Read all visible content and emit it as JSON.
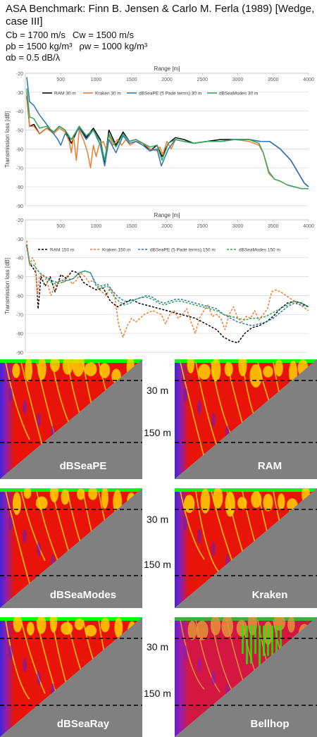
{
  "header": {
    "title": "ASA Benchmark: Finn B. Jensen & Carlo M. Ferla (1989) [Wedge, case III]",
    "params_line1_left": "Cb = 1700 m/s",
    "params_line1_right": "Cw = 1500 m/s",
    "params_line2_left": "ρb = 1500 kg/m³",
    "params_line2_right": "ρw = 1000 kg/m³",
    "params_line3": "αb = 0.5 dB/λ"
  },
  "colors": {
    "RAM": "#000000",
    "Kraken": "#ED7D31",
    "dBSeaPE": "#2E75B6",
    "dBSeaModes": "#2EA85A",
    "seabed": "#808080",
    "water_hot": "#e8140a",
    "water_mid": "#ffd100",
    "surface": "#00ff00",
    "deep": "#6a1cc8"
  },
  "chart_data": [
    {
      "type": "line",
      "receiver_depth_m": 30,
      "xlabel": "Range [m]",
      "ylabel": "Transmission loss [dB]",
      "xlim": [
        0,
        4000
      ],
      "ylim": [
        -90,
        -20
      ],
      "x_ticks": [
        "500",
        "1000",
        "1500",
        "2000",
        "2500",
        "3000",
        "3500",
        "4000"
      ],
      "y_ticks": [
        "-20",
        "-30",
        "-40",
        "-50",
        "-60",
        "-70",
        "-80",
        "-90"
      ],
      "grid": true,
      "legend_position": "top",
      "series": [
        {
          "name": "RAM 30 m",
          "key": "RAM",
          "dashed": false,
          "x": [
            20,
            60,
            120,
            200,
            300,
            400,
            480,
            560,
            650,
            760,
            860,
            960,
            1060,
            1120,
            1180,
            1280,
            1380,
            1470,
            1560,
            1660,
            1760,
            1860,
            1930,
            2020,
            2120,
            2240,
            2380,
            2560,
            2760,
            2960,
            3160,
            3320,
            3450,
            3600,
            3750,
            3860,
            3940,
            4000
          ],
          "y": [
            -32,
            -48,
            -47,
            -52,
            -49,
            -51,
            -48,
            -50,
            -57,
            -48,
            -54,
            -49,
            -55,
            -67,
            -50,
            -58,
            -51,
            -56,
            -55,
            -57,
            -61,
            -58,
            -64,
            -57,
            -54,
            -55,
            -57,
            -56,
            -55,
            -55,
            -55,
            -56,
            -56,
            -60,
            -66,
            -73,
            -78,
            -80
          ]
        },
        {
          "name": "Kraken 30 m",
          "key": "Kraken",
          "dashed": false,
          "x": [
            20,
            60,
            120,
            200,
            300,
            400,
            480,
            560,
            620,
            650,
            680,
            720,
            760,
            830,
            880,
            920,
            960,
            1000,
            1040,
            1100,
            1140,
            1180,
            1240,
            1300,
            1360,
            1420,
            1480,
            1560,
            1660,
            1760,
            1860,
            1900,
            1940,
            2000,
            2060,
            2120,
            2240,
            2380,
            2560,
            2760,
            2960,
            3160,
            3300,
            3360,
            3440,
            3520,
            3600,
            3700,
            3800,
            3900,
            4000
          ],
          "y": [
            -30,
            -48,
            -48,
            -52,
            -49,
            -52,
            -49,
            -51,
            -56,
            -62,
            -53,
            -66,
            -50,
            -56,
            -62,
            -70,
            -58,
            -64,
            -58,
            -56,
            -60,
            -53,
            -58,
            -55,
            -58,
            -55,
            -58,
            -56,
            -57,
            -60,
            -61,
            -59,
            -63,
            -56,
            -60,
            -55,
            -56,
            -57,
            -56,
            -56,
            -55,
            -56,
            -58,
            -62,
            -73,
            -76,
            -77,
            -79,
            -80,
            -81,
            -81
          ]
        },
        {
          "name": "dBSeaPE (5 Padé terms) 30 m",
          "key": "dBSeaPE",
          "dashed": false,
          "x": [
            20,
            60,
            120,
            200,
            300,
            400,
            460,
            500,
            560,
            650,
            760,
            860,
            960,
            1060,
            1120,
            1180,
            1280,
            1380,
            1470,
            1560,
            1660,
            1760,
            1860,
            1920,
            2020,
            2120,
            2240,
            2380,
            2560,
            2760,
            2960,
            3160,
            3320,
            3450,
            3600,
            3750,
            3860,
            3940,
            4000
          ],
          "y": [
            -22,
            -35,
            -37,
            -42,
            -47,
            -52,
            -55,
            -58,
            -52,
            -55,
            -49,
            -55,
            -50,
            -58,
            -69,
            -55,
            -62,
            -53,
            -57,
            -56,
            -58,
            -61,
            -60,
            -69,
            -60,
            -55,
            -56,
            -57,
            -56,
            -56,
            -55,
            -55,
            -56,
            -56,
            -60,
            -66,
            -73,
            -78,
            -80
          ]
        },
        {
          "name": "dBSeaModes 30 m",
          "key": "dBSeaModes",
          "dashed": false,
          "x": [
            20,
            60,
            120,
            200,
            300,
            400,
            480,
            560,
            650,
            760,
            860,
            960,
            1060,
            1120,
            1180,
            1280,
            1380,
            1470,
            1560,
            1660,
            1760,
            1860,
            1930,
            2020,
            2120,
            2240,
            2380,
            2560,
            2760,
            2960,
            3160,
            3300,
            3360,
            3440,
            3520,
            3600,
            3700,
            3800,
            3900,
            4000
          ],
          "y": [
            -28,
            -43,
            -44,
            -49,
            -48,
            -51,
            -48,
            -50,
            -55,
            -48,
            -53,
            -50,
            -56,
            -66,
            -52,
            -59,
            -52,
            -56,
            -55,
            -57,
            -59,
            -58,
            -66,
            -57,
            -55,
            -56,
            -57,
            -56,
            -56,
            -55,
            -55,
            -57,
            -62,
            -72,
            -76,
            -77,
            -79,
            -80,
            -81,
            -81
          ]
        }
      ]
    },
    {
      "type": "line",
      "receiver_depth_m": 150,
      "xlabel": "Range [m]",
      "ylabel": "Transmission loss [dB]",
      "xlim": [
        0,
        4000
      ],
      "ylim": [
        -90,
        -20
      ],
      "x_ticks": [
        "500",
        "1000",
        "1500",
        "2000",
        "2500",
        "3000",
        "3500",
        "4000"
      ],
      "y_ticks": [
        "-20",
        "-30",
        "-40",
        "-50",
        "-60",
        "-70",
        "-80",
        "-90"
      ],
      "grid": true,
      "legend_position": "top",
      "series": [
        {
          "name": "RAM 150 m",
          "key": "RAM",
          "dashed": true,
          "x": [
            20,
            60,
            100,
            150,
            180,
            220,
            280,
            350,
            420,
            500,
            580,
            660,
            740,
            820,
            900,
            1000,
            1100,
            1200,
            1300,
            1400,
            1500,
            1600,
            1700,
            1800,
            1900,
            2000,
            2100,
            2200,
            2300,
            2400,
            2500,
            2600,
            2700,
            2800,
            2900,
            3000,
            3100,
            3200,
            3300,
            3400,
            3500,
            3600,
            3700,
            3800,
            3900,
            4000
          ],
          "y": [
            -33,
            -43,
            -45,
            -48,
            -67,
            -50,
            -55,
            -50,
            -58,
            -49,
            -51,
            -47,
            -48,
            -53,
            -55,
            -57,
            -56,
            -63,
            -66,
            -64,
            -62,
            -64,
            -65,
            -66,
            -67,
            -68,
            -69,
            -70,
            -71,
            -72,
            -74,
            -76,
            -78,
            -82,
            -84,
            -85,
            -80,
            -77,
            -76,
            -74,
            -71,
            -67,
            -64,
            -63,
            -64,
            -66
          ]
        },
        {
          "name": "Kraken 150 m",
          "key": "Kraken",
          "dashed": true,
          "x": [
            20,
            60,
            100,
            140,
            170,
            200,
            240,
            300,
            360,
            420,
            480,
            540,
            600,
            660,
            720,
            780,
            840,
            900,
            960,
            1020,
            1080,
            1140,
            1200,
            1260,
            1320,
            1380,
            1440,
            1500,
            1560,
            1620,
            1680,
            1740,
            1800,
            1860,
            1920,
            1980,
            2040,
            2100,
            2160,
            2220,
            2280,
            2340,
            2400,
            2460,
            2520,
            2580,
            2640,
            2700,
            2760,
            2820,
            2880,
            2940,
            3000,
            3060,
            3120,
            3180,
            3240,
            3300,
            3360,
            3420,
            3480,
            3540,
            3600,
            3680,
            3760,
            3840,
            3920,
            4000
          ],
          "y": [
            -31,
            -44,
            -40,
            -43,
            -60,
            -50,
            -49,
            -52,
            -60,
            -55,
            -52,
            -53,
            -49,
            -54,
            -52,
            -48,
            -50,
            -53,
            -52,
            -56,
            -58,
            -60,
            -56,
            -60,
            -76,
            -82,
            -76,
            -72,
            -74,
            -72,
            -70,
            -69,
            -68,
            -69,
            -70,
            -75,
            -70,
            -68,
            -72,
            -70,
            -67,
            -74,
            -80,
            -72,
            -68,
            -65,
            -71,
            -70,
            -72,
            -78,
            -70,
            -66,
            -72,
            -74,
            -71,
            -72,
            -68,
            -73,
            -70,
            -67,
            -58,
            -57,
            -58,
            -60,
            -62,
            -64,
            -66,
            -68
          ]
        },
        {
          "name": "dBSeaPE (5 Padé terms) 150 m",
          "key": "dBSeaPE",
          "dashed": true,
          "x": [
            20,
            60,
            120,
            200,
            280,
            360,
            440,
            520,
            600,
            680,
            760,
            840,
            920,
            1000,
            1080,
            1160,
            1240,
            1320,
            1400,
            1480,
            1560,
            1640,
            1720,
            1800,
            1880,
            1960,
            2040,
            2120,
            2200,
            2300,
            2400,
            2500,
            2600,
            2700,
            2800,
            2900,
            3000,
            3100,
            3200,
            3300,
            3400,
            3500,
            3600,
            3700,
            3800,
            3900,
            4000
          ],
          "y": [
            -34,
            -43,
            -44,
            -48,
            -50,
            -52,
            -53,
            -52,
            -52,
            -51,
            -48,
            -47,
            -48,
            -54,
            -55,
            -54,
            -58,
            -61,
            -63,
            -63,
            -62,
            -61,
            -60,
            -61,
            -63,
            -64,
            -63,
            -62,
            -62,
            -63,
            -64,
            -65,
            -66,
            -67,
            -70,
            -72,
            -74,
            -75,
            -76,
            -75,
            -74,
            -72,
            -69,
            -66,
            -64,
            -65,
            -66
          ]
        },
        {
          "name": "dBSeaModes 150 m",
          "key": "dBSeaModes",
          "dashed": true,
          "x": [
            20,
            60,
            120,
            200,
            280,
            360,
            440,
            520,
            600,
            680,
            760,
            840,
            920,
            1000,
            1080,
            1160,
            1240,
            1320,
            1400,
            1480,
            1560,
            1640,
            1720,
            1800,
            1880,
            1960,
            2040,
            2120,
            2200,
            2300,
            2400,
            2500,
            2600,
            2700,
            2800,
            2900,
            3000,
            3100,
            3200,
            3300,
            3400,
            3500,
            3600,
            3700,
            3800,
            3900,
            4000
          ],
          "y": [
            -34,
            -43,
            -44,
            -48,
            -50,
            -53,
            -54,
            -53,
            -52,
            -51,
            -48,
            -47,
            -48,
            -55,
            -56,
            -55,
            -60,
            -63,
            -65,
            -64,
            -62,
            -61,
            -61,
            -62,
            -64,
            -65,
            -64,
            -63,
            -63,
            -64,
            -65,
            -66,
            -67,
            -68,
            -70,
            -71,
            -72,
            -73,
            -72,
            -72,
            -71,
            -69,
            -67,
            -65,
            -63,
            -64,
            -66
          ]
        }
      ]
    }
  ],
  "panels": {
    "depth_label_30": "30 m",
    "depth_label_150": "150 m",
    "items": [
      {
        "id": "dbseape",
        "label": "dBSeaPE",
        "left": true
      },
      {
        "id": "ram",
        "label": "RAM",
        "left": false
      },
      {
        "id": "dbseamodes",
        "label": "dBSeaModes",
        "left": true
      },
      {
        "id": "kraken",
        "label": "Kraken",
        "left": false
      },
      {
        "id": "dbsearay",
        "label": "dBSeaRay",
        "left": true
      },
      {
        "id": "bellhop",
        "label": "Bellhop",
        "left": false
      }
    ]
  }
}
